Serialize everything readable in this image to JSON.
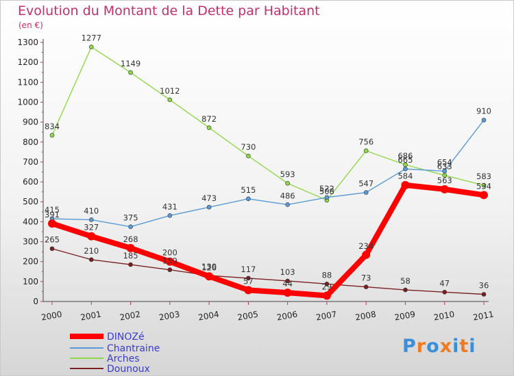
{
  "chart_data": {
    "type": "line",
    "title": "Evolution du Montant de la Dette par Habitant",
    "subtitle": "(en €)",
    "x": [
      "2000",
      "2001",
      "2002",
      "2003",
      "2004",
      "2005",
      "2006",
      "2007",
      "2008",
      "2009",
      "2010",
      "2011"
    ],
    "ylim": [
      0,
      1300
    ],
    "yticks": [
      0,
      100,
      200,
      300,
      400,
      500,
      600,
      700,
      800,
      900,
      1000,
      1100,
      1200,
      1300
    ],
    "grid": false,
    "legend_position": "bottom-left",
    "series": [
      {
        "name": "DINOZé",
        "color": "#ff0000",
        "values": [
          391,
          327,
          268,
          200,
          126,
          57,
          44,
          29,
          234,
          584,
          563,
          534
        ]
      },
      {
        "name": "Chantraine",
        "color": "#5b9bd5",
        "values": [
          415,
          410,
          375,
          431,
          473,
          515,
          486,
          522,
          547,
          665,
          654,
          910
        ]
      },
      {
        "name": "Arches",
        "color": "#8fd84a",
        "values": [
          834,
          1277,
          1149,
          1012,
          872,
          730,
          593,
          508,
          756,
          686,
          633,
          583
        ]
      },
      {
        "name": "Dounoux",
        "color": "#7a2020",
        "values": [
          265,
          210,
          185,
          159,
          130,
          117,
          103,
          88,
          73,
          58,
          47,
          36
        ]
      }
    ]
  },
  "logo": {
    "letters": [
      "P",
      "r",
      "o",
      "x",
      "i",
      "t",
      "i"
    ],
    "colors": [
      "#3a8fd8",
      "#f07a20",
      "#3a8fd8",
      "#f07a20",
      "#3a8fd8",
      "#f07a20",
      "#3a8fd8"
    ]
  }
}
